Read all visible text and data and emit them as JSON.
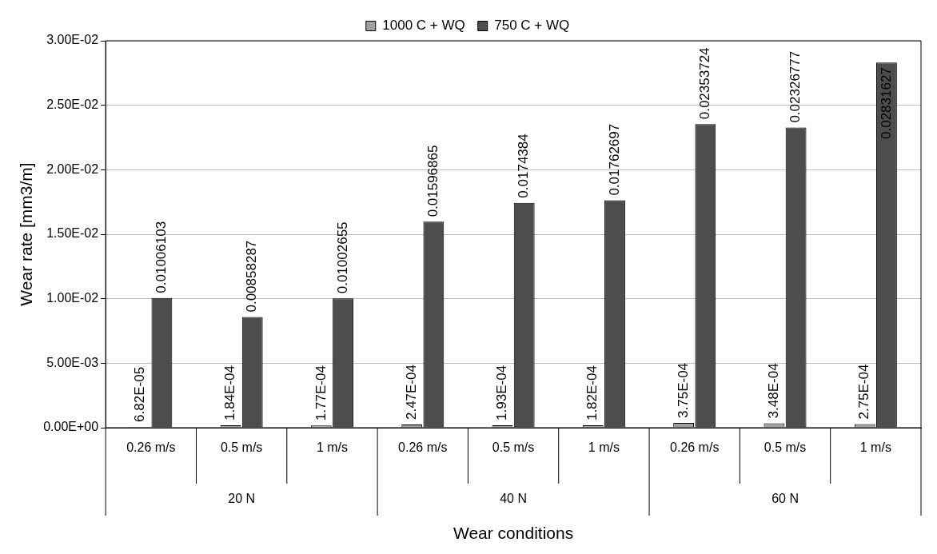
{
  "chart_data": {
    "type": "bar",
    "xlabel": "Wear conditions",
    "ylabel": "Wear rate [mm3/m]",
    "categories": [
      "0.26 m/s",
      "0.5 m/s",
      "1 m/s",
      "0.26 m/s",
      "0.5 m/s",
      "1 m/s",
      "0.26 m/s",
      "0.5 m/s",
      "1 m/s"
    ],
    "annotations": [
      "20 N",
      "40 N",
      "60 N"
    ],
    "series": [
      {
        "name": "1000 C + WQ",
        "color": "#a0a0a0",
        "values": [
          6.82e-05,
          0.000184,
          0.000177,
          0.000247,
          0.000193,
          0.000182,
          0.000375,
          0.000348,
          0.000275
        ],
        "value_labels": [
          "6.82E-05",
          "1.84E-04",
          "1.77E-04",
          "2.47E-04",
          "1.93E-04",
          "1.82E-04",
          "3.75E-04",
          "3.48E-04",
          "2.75E-04"
        ]
      },
      {
        "name": "750 C + WQ",
        "color": "#4d4d4d",
        "values": [
          0.01006103,
          0.00858287,
          0.01002655,
          0.01596865,
          0.0174384,
          0.01762697,
          0.02353724,
          0.02326777,
          0.02831627
        ],
        "value_labels": [
          "0.01006103",
          "0.00858287",
          "0.01002655",
          "0.01596865",
          "0.0174384",
          "0.01762697",
          "0.02353724",
          "0.02326777",
          "0.02831627"
        ]
      }
    ],
    "ylim": [
      0,
      0.03
    ],
    "yticks": [
      {
        "value": 0,
        "label": "0.00E+00"
      },
      {
        "value": 0.005,
        "label": "5.00E-03"
      },
      {
        "value": 0.01,
        "label": "1.00E-02"
      },
      {
        "value": 0.015,
        "label": "1.50E-02"
      },
      {
        "value": 0.02,
        "label": "2.00E-02"
      },
      {
        "value": 0.025,
        "label": "2.50E-02"
      },
      {
        "value": 0.03,
        "label": "3.00E-02"
      }
    ],
    "grid": "y",
    "legend": "top"
  }
}
